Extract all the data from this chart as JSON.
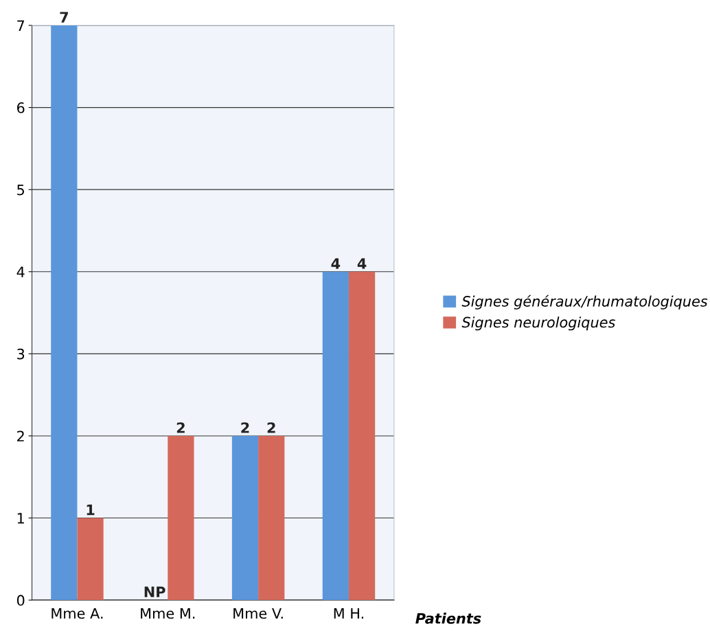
{
  "chart_data": {
    "type": "bar",
    "xlabel": "Patients",
    "categories": [
      "Mme A.",
      "Mme M.",
      "Mme V.",
      "M H."
    ],
    "series": [
      {
        "name": "Signes généraux/rhumatologiques",
        "color": "#5b96da",
        "values": [
          7,
          null,
          2,
          4
        ],
        "value_labels": [
          "7",
          "NP",
          "2",
          "4"
        ]
      },
      {
        "name": "Signes neurologiques",
        "color": "#d4695b",
        "values": [
          1,
          2,
          2,
          4
        ],
        "value_labels": [
          "1",
          "2",
          "2",
          "4"
        ]
      }
    ],
    "ylim": [
      0,
      7
    ],
    "yticks": [
      0,
      1,
      2,
      3,
      4,
      5,
      6,
      7
    ],
    "grid": "y",
    "legend": "right"
  }
}
